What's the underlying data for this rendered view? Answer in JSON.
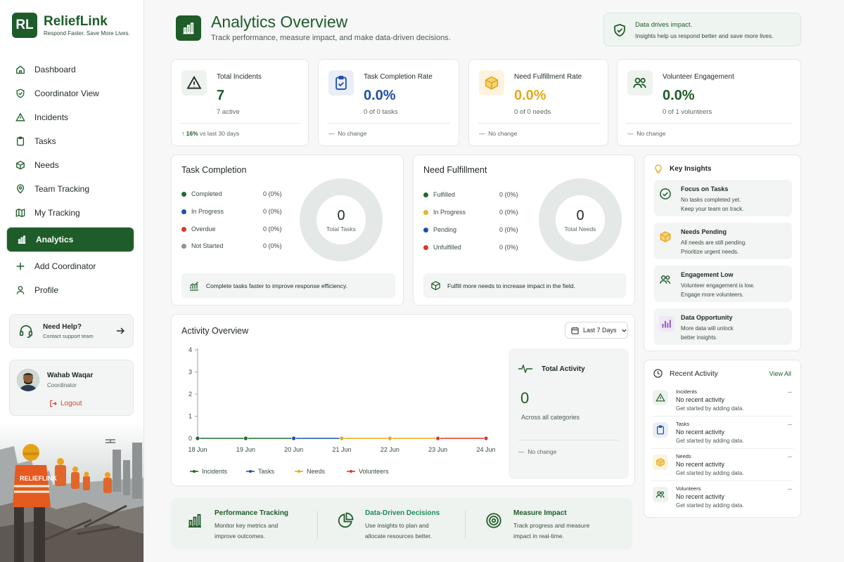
{
  "brand": {
    "logo": "RL",
    "name": "ReliefLink",
    "tagline": "Respond Faster. Save More Lives."
  },
  "nav": [
    {
      "label": "Dashboard",
      "icon": "home-icon"
    },
    {
      "label": "Coordinator View",
      "icon": "shield-check-icon"
    },
    {
      "label": "Incidents",
      "icon": "warning-icon"
    },
    {
      "label": "Tasks",
      "icon": "clipboard-icon"
    },
    {
      "label": "Needs",
      "icon": "box-icon"
    },
    {
      "label": "Team Tracking",
      "icon": "map-pin-icon"
    },
    {
      "label": "My Tracking",
      "icon": "map-icon"
    },
    {
      "label": "Analytics",
      "icon": "bar-chart-icon",
      "active": true
    },
    {
      "label": "Add Coordinator",
      "icon": "plus-icon"
    },
    {
      "label": "Profile",
      "icon": "user-icon"
    }
  ],
  "help": {
    "title": "Need Help?",
    "subtitle": "Contact support team"
  },
  "user": {
    "name": "Wahab Waqar",
    "role": "Coordinator",
    "logout": "Logout"
  },
  "scene": {
    "badge": "RELIEFLINK"
  },
  "header": {
    "title": "Analytics Overview",
    "subtitle": "Track performance, measure impact, and make data-driven decisions."
  },
  "banner": {
    "title": "Data drives impact.",
    "subtitle": "Insights help us respond better and save more lives."
  },
  "kpis": [
    {
      "label": "Total Incidents",
      "value": "7",
      "sub": "7 active",
      "trend_pct": "16%",
      "trend_text": "vs last 30 days",
      "color": "#1e5c2a"
    },
    {
      "label": "Task Completion Rate",
      "value": "0.0%",
      "sub": "0 of 0 tasks",
      "foot": "No change",
      "color": "#1f4fa8"
    },
    {
      "label": "Need Fulfillment Rate",
      "value": "0.0%",
      "sub": "0 of 0 needs",
      "foot": "No change",
      "color": "#e6a91a"
    },
    {
      "label": "Volunteer Engagement",
      "value": "0.0%",
      "sub": "0 of 1 volunteers",
      "foot": "No change",
      "color": "#1e5c2a"
    }
  ],
  "task_completion": {
    "title": "Task Completion",
    "rows": [
      {
        "label": "Completed",
        "value": "0 (0%)",
        "color": "#1e6b2f"
      },
      {
        "label": "In Progress",
        "value": "0 (0%)",
        "color": "#1f4fa8"
      },
      {
        "label": "Overdue",
        "value": "0 (0%)",
        "color": "#d63a2a"
      },
      {
        "label": "Not Started",
        "value": "0 (0%)",
        "color": "#8a948e"
      }
    ],
    "total": "0",
    "total_label": "Total Tasks",
    "tip": "Complete tasks faster to improve response efficiency."
  },
  "need_fulfillment": {
    "title": "Need Fulfillment",
    "rows": [
      {
        "label": "Fulfilled",
        "value": "0 (0%)",
        "color": "#1e6b2f"
      },
      {
        "label": "In Progress",
        "value": "0 (0%)",
        "color": "#e6b422"
      },
      {
        "label": "Pending",
        "value": "0 (0%)",
        "color": "#1f4fa8"
      },
      {
        "label": "Unfulfilled",
        "value": "0 (0%)",
        "color": "#d63a2a"
      }
    ],
    "total": "0",
    "total_label": "Total Needs",
    "tip": "Fulfill more needs to increase impact in the field."
  },
  "insights": {
    "title": "Key Insights",
    "items": [
      {
        "title": "Focus on Tasks",
        "line1": "No tasks completed yet.",
        "line2": "Keep your team on track.",
        "icon": "check-circle-icon"
      },
      {
        "title": "Needs Pending",
        "line1": "All needs are still pending.",
        "line2": "Prioritize urgent needs.",
        "icon": "box-icon"
      },
      {
        "title": "Engagement Low",
        "line1": "Volunteer engagement is low.",
        "line2": "Engage more volunteers.",
        "icon": "users-icon"
      },
      {
        "title": "Data Opportunity",
        "line1": "More data will unlock",
        "line2": "better insights.",
        "icon": "bar-chart-icon"
      }
    ]
  },
  "activity": {
    "title": "Activity Overview",
    "range": "Last 7 Days",
    "total_title": "Total Activity",
    "total_value": "0",
    "total_sub": "Across all categories",
    "total_foot": "No change"
  },
  "chart_data": {
    "type": "line",
    "x": [
      "18 Jun",
      "19 Jun",
      "20 Jun",
      "21 Jun",
      "22 Jun",
      "23 Jun",
      "24 Jun"
    ],
    "ylim": [
      0,
      4
    ],
    "yticks": [
      0,
      1,
      2,
      3,
      4
    ],
    "series": [
      {
        "name": "Incidents",
        "color": "#1e6b2f",
        "values": [
          0,
          0,
          0,
          0,
          0,
          0,
          0
        ]
      },
      {
        "name": "Tasks",
        "color": "#1f4fa8",
        "values": [
          0,
          0,
          0,
          0,
          0,
          0,
          0
        ]
      },
      {
        "name": "Needs",
        "color": "#e6a91a",
        "values": [
          0,
          0,
          0,
          0,
          0,
          0,
          0
        ]
      },
      {
        "name": "Volunteers",
        "color": "#d63a2a",
        "values": [
          0,
          0,
          0,
          0,
          0,
          0,
          0
        ]
      }
    ],
    "grid": false
  },
  "recent": {
    "title": "Recent Activity",
    "view_all": "View All",
    "items": [
      {
        "category": "Incidents",
        "main": "No recent activity",
        "sub": "Get started by adding data.",
        "dash": "--",
        "icon": "warning-icon"
      },
      {
        "category": "Tasks",
        "main": "No recent activity",
        "sub": "Get started by adding data.",
        "dash": "--",
        "icon": "clipboard-icon"
      },
      {
        "category": "Needs",
        "main": "No recent activity",
        "sub": "Get started by adding data.",
        "dash": "--",
        "icon": "box-icon"
      },
      {
        "category": "Volunteers",
        "main": "No recent activity",
        "sub": "Get started by adding data.",
        "dash": "--",
        "icon": "users-icon"
      }
    ]
  },
  "bottom": [
    {
      "title": "Performance Tracking",
      "line1": "Monitor key metrics and",
      "line2": "improve outcomes.",
      "color": "#1e5c2a",
      "icon": "bar-chart-icon"
    },
    {
      "title": "Data-Driven Decisions",
      "line1": "Use insights to plan and",
      "line2": "allocate resources better.",
      "color": "#1e8a5a",
      "icon": "pie-chart-icon"
    },
    {
      "title": "Measure Impact",
      "line1": "Track progress and measure",
      "line2": "impact in real-time.",
      "color": "#1e5c2a",
      "icon": "target-icon"
    }
  ]
}
